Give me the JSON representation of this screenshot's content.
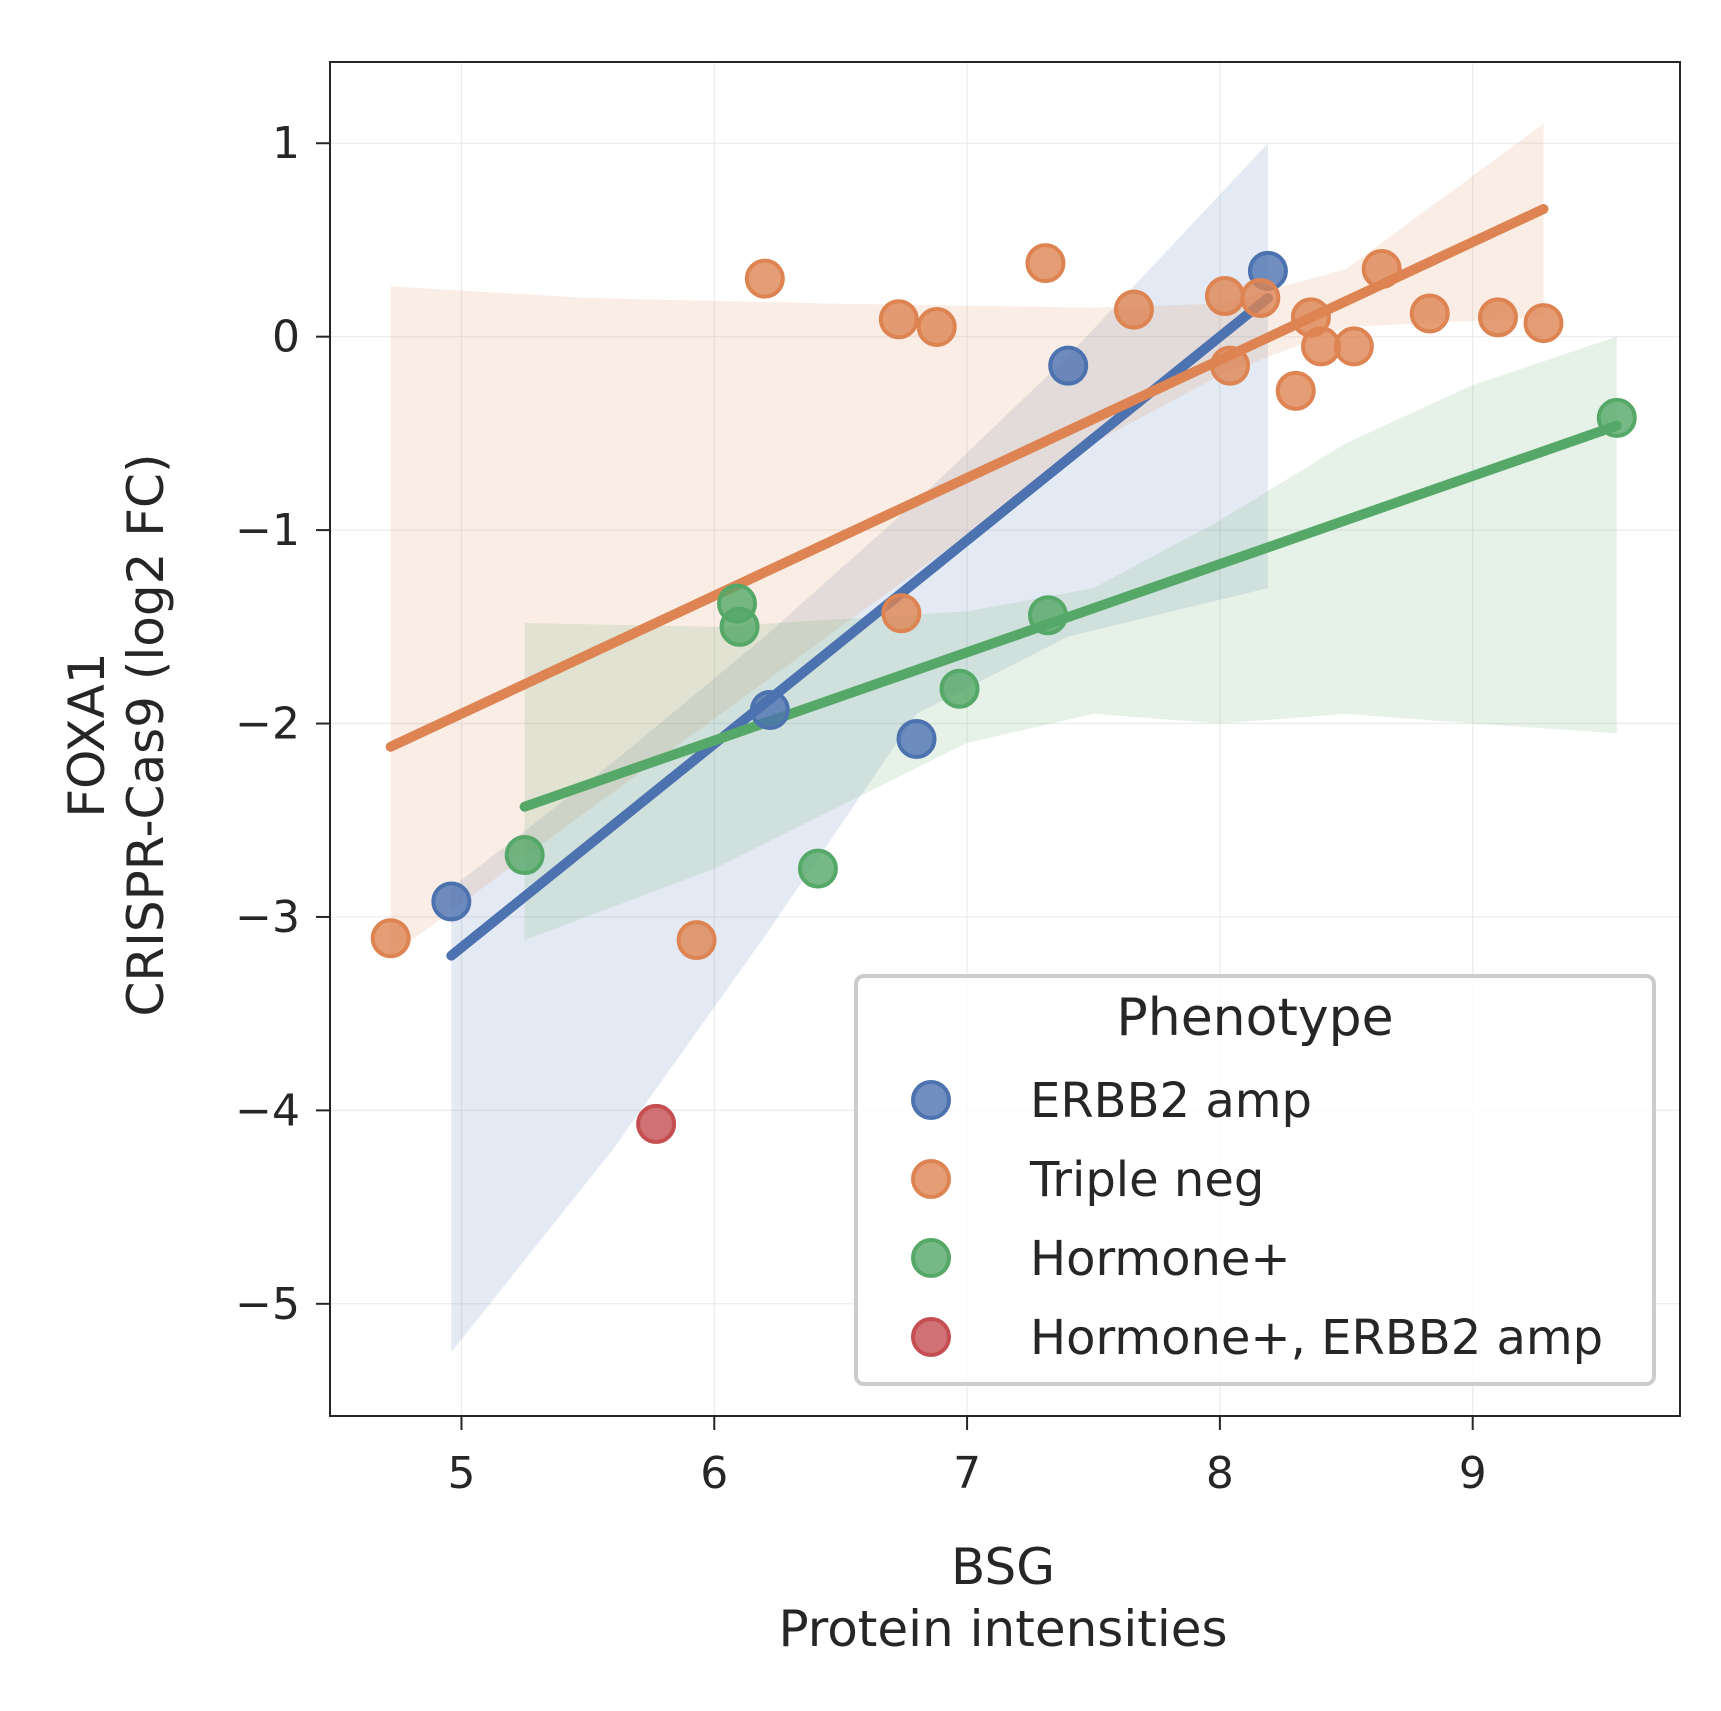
{
  "chart_data": {
    "type": "scatter",
    "xlabel": [
      "BSG",
      "Protein intensities"
    ],
    "ylabel": [
      "FOXA1",
      "CRISPR-Cas9 (log2 FC)"
    ],
    "xlim": [
      4.48,
      9.82
    ],
    "ylim": [
      -5.58,
      1.42
    ],
    "xticks": [
      5,
      6,
      7,
      8,
      9
    ],
    "yticks": [
      1,
      0,
      -1,
      -2,
      -3,
      -4,
      -5
    ],
    "xtick_labels": [
      "5",
      "6",
      "7",
      "8",
      "9"
    ],
    "ytick_labels": [
      "1",
      "0",
      "−1",
      "−2",
      "−3",
      "−4",
      "−5"
    ],
    "grid": true,
    "legend": {
      "title": "Phenotype",
      "placement": "lower-right",
      "entries": [
        "ERBB2 amp",
        "Triple neg",
        "Hormone+",
        "Hormone+, ERBB2 amp"
      ]
    },
    "series": [
      {
        "name": "ERBB2 amp",
        "color": "#4c72b0",
        "points": [
          [
            4.96,
            -2.92
          ],
          [
            6.22,
            -1.93
          ],
          [
            6.8,
            -2.08
          ],
          [
            7.4,
            -0.15
          ],
          [
            8.19,
            0.34
          ]
        ],
        "fit": {
          "x": [
            4.96,
            8.19
          ],
          "y": [
            -3.2,
            0.2
          ]
        },
        "ci": {
          "x": [
            4.96,
            5.6,
            6.2,
            6.8,
            7.4,
            8.19
          ],
          "upper": [
            -2.85,
            -2.2,
            -1.55,
            -0.85,
            -0.1,
            1.0
          ],
          "lower": [
            -5.25,
            -4.2,
            -3.1,
            -1.95,
            -1.55,
            -1.3
          ]
        }
      },
      {
        "name": "Triple neg",
        "color": "#dd8452",
        "points": [
          [
            4.72,
            -3.11
          ],
          [
            5.93,
            -3.12
          ],
          [
            6.2,
            0.3
          ],
          [
            6.73,
            0.09
          ],
          [
            6.88,
            0.05
          ],
          [
            6.74,
            -1.43
          ],
          [
            7.31,
            0.38
          ],
          [
            7.66,
            0.14
          ],
          [
            8.02,
            0.21
          ],
          [
            8.04,
            -0.15
          ],
          [
            8.16,
            0.2
          ],
          [
            8.3,
            -0.28
          ],
          [
            8.36,
            0.1
          ],
          [
            8.4,
            -0.05
          ],
          [
            8.53,
            -0.05
          ],
          [
            8.64,
            0.35
          ],
          [
            8.83,
            0.12
          ],
          [
            9.1,
            0.1
          ],
          [
            9.28,
            0.07
          ]
        ],
        "fit": {
          "x": [
            4.72,
            9.28
          ],
          "y": [
            -2.12,
            0.66
          ]
        },
        "ci": {
          "x": [
            4.72,
            5.5,
            6.5,
            7.5,
            8.0,
            8.5,
            9.28
          ],
          "upper": [
            0.26,
            0.2,
            0.17,
            0.15,
            0.17,
            0.35,
            1.1
          ],
          "lower": [
            -3.2,
            -2.45,
            -1.5,
            -0.55,
            -0.2,
            0.05,
            0.1
          ]
        }
      },
      {
        "name": "Hormone+",
        "color": "#55a868",
        "points": [
          [
            5.25,
            -2.68
          ],
          [
            6.09,
            -1.38
          ],
          [
            6.1,
            -1.5
          ],
          [
            6.41,
            -2.75
          ],
          [
            6.97,
            -1.82
          ],
          [
            7.32,
            -1.44
          ],
          [
            9.57,
            -0.42
          ]
        ],
        "fit": {
          "x": [
            5.25,
            9.57
          ],
          "y": [
            -2.43,
            -0.46
          ]
        },
        "ci": {
          "x": [
            5.25,
            6.0,
            7.0,
            7.5,
            8.0,
            8.5,
            9.0,
            9.57
          ],
          "upper": [
            -1.48,
            -1.5,
            -1.42,
            -1.3,
            -0.95,
            -0.55,
            -0.25,
            0.0
          ],
          "lower": [
            -3.12,
            -2.75,
            -2.1,
            -1.95,
            -2.0,
            -1.95,
            -2.0,
            -2.05
          ]
        }
      },
      {
        "name": "Hormone+, ERBB2 amp",
        "color": "#c44e52",
        "points": [
          [
            5.77,
            -4.07
          ]
        ]
      }
    ]
  }
}
